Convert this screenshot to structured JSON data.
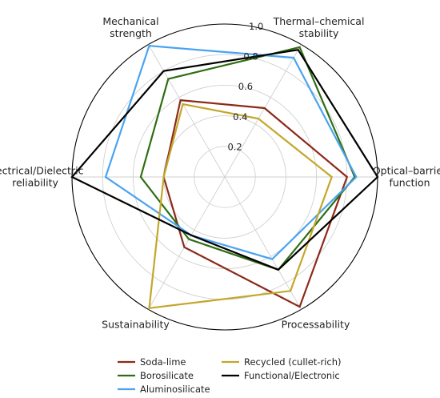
{
  "chart_data": {
    "type": "radar",
    "axes": [
      "Optical–barrier function",
      "Thermal–chemical stability",
      "Mechanical strength",
      "Electrical/Dielectric reliability",
      "Sustainability",
      "Processability"
    ],
    "rlim": [
      0,
      1.0
    ],
    "ticks": [
      "0.2",
      "0.4",
      "0.6",
      "0.8",
      "1.0"
    ],
    "grid": true,
    "legend_position": "bottom",
    "series": [
      {
        "name": "Soda-lime",
        "color": "#8b2a1a",
        "values": [
          0.8,
          0.52,
          0.58,
          0.4,
          0.53,
          0.98
        ]
      },
      {
        "name": "Borosilicate",
        "color": "#2e6e12",
        "values": [
          0.85,
          0.98,
          0.74,
          0.55,
          0.47,
          0.7
        ]
      },
      {
        "name": "Aluminosilicate",
        "color": "#4aa3f0",
        "values": [
          0.86,
          0.9,
          0.99,
          0.78,
          0.44,
          0.62
        ]
      },
      {
        "name": "Recycled (cullet-rich)",
        "color": "#c4a62a",
        "values": [
          0.7,
          0.44,
          0.55,
          0.4,
          0.99,
          0.86
        ]
      },
      {
        "name": "Functional/Electronic",
        "color": "#000000",
        "values": [
          1.0,
          0.96,
          0.8,
          1.0,
          0.44,
          0.7
        ]
      }
    ]
  }
}
